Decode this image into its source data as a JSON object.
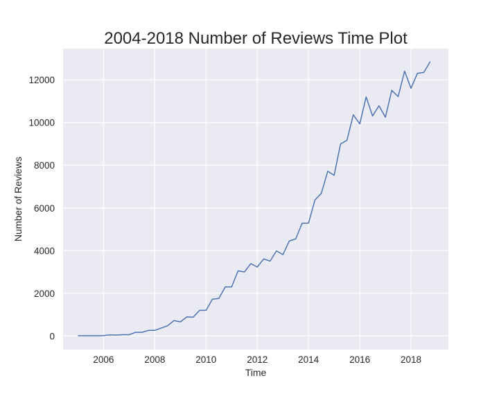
{
  "chart_data": {
    "type": "line",
    "title": "2004-2018 Number of Reviews Time Plot",
    "xlabel": "Time",
    "ylabel": "Number of Reviews",
    "xlim": [
      2004.42,
      2019.46
    ],
    "ylim": [
      -640,
      13470
    ],
    "x_ticks": [
      2006,
      2008,
      2010,
      2012,
      2014,
      2016,
      2018
    ],
    "y_ticks": [
      0,
      2000,
      4000,
      6000,
      8000,
      10000,
      12000
    ],
    "grid": true,
    "background_color": "#eaeaf2",
    "grid_color": "#ffffff",
    "line_color": "#4c72b0",
    "series": [
      {
        "x": [
          2005.0,
          2005.25,
          2005.5,
          2005.75,
          2006.0,
          2006.25,
          2006.5,
          2006.75,
          2007.0,
          2007.25,
          2007.5,
          2007.75,
          2008.0,
          2008.25,
          2008.5,
          2008.75,
          2009.0,
          2009.25,
          2009.5,
          2009.75,
          2010.0,
          2010.25,
          2010.5,
          2010.75,
          2011.0,
          2011.25,
          2011.5,
          2011.75,
          2012.0,
          2012.25,
          2012.5,
          2012.75,
          2013.0,
          2013.25,
          2013.5,
          2013.75,
          2014.0,
          2014.25,
          2014.5,
          2014.75,
          2015.0,
          2015.25,
          2015.5,
          2015.75,
          2016.0,
          2016.25,
          2016.5,
          2016.75,
          2017.0,
          2017.25,
          2017.5,
          2017.75,
          2018.0,
          2018.25,
          2018.5,
          2018.75
        ],
        "values": [
          10,
          10,
          10,
          10,
          20,
          50,
          40,
          60,
          60,
          170,
          170,
          260,
          260,
          370,
          480,
          720,
          660,
          890,
          880,
          1200,
          1200,
          1720,
          1760,
          2300,
          2300,
          3050,
          3000,
          3390,
          3230,
          3610,
          3510,
          3990,
          3810,
          4450,
          4550,
          5280,
          5290,
          6370,
          6680,
          7720,
          7530,
          9000,
          9170,
          10370,
          9940,
          11200,
          10310,
          10790,
          10250,
          11510,
          11220,
          12410,
          11610,
          12310,
          12350,
          12860
        ]
      }
    ]
  }
}
